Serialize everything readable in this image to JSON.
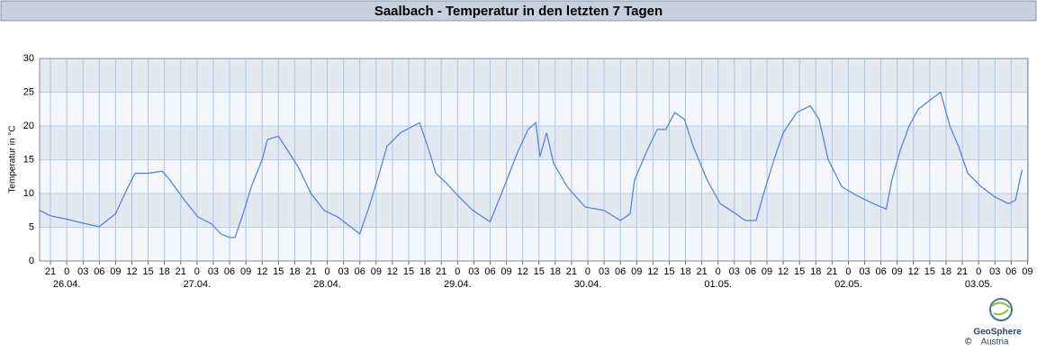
{
  "chart_data": {
    "type": "line",
    "title": "Saalbach - Temperatur in den letzten 7 Tagen",
    "y_label": "Temperatur in °C",
    "logo": {
      "name": "GeoSphere",
      "sub": "Austria",
      "copyright": "©"
    },
    "xlim": [
      -5,
      177.1
    ],
    "ylim": [
      0,
      30
    ],
    "yticks": [
      0,
      5,
      10,
      15,
      20,
      25,
      30
    ],
    "grid": true,
    "bands": true,
    "xticks": [
      {
        "value": -3,
        "label": "21"
      },
      {
        "value": 0,
        "label": "0"
      },
      {
        "value": 3,
        "label": "03"
      },
      {
        "value": 6,
        "label": "06"
      },
      {
        "value": 9,
        "label": "09"
      },
      {
        "value": 12,
        "label": "12"
      },
      {
        "value": 15,
        "label": "15"
      },
      {
        "value": 18,
        "label": "18"
      },
      {
        "value": 21,
        "label": "21"
      },
      {
        "value": 24,
        "label": "0"
      },
      {
        "value": 27,
        "label": "03"
      },
      {
        "value": 30,
        "label": "06"
      },
      {
        "value": 33,
        "label": "09"
      },
      {
        "value": 36,
        "label": "12"
      },
      {
        "value": 39,
        "label": "15"
      },
      {
        "value": 42,
        "label": "18"
      },
      {
        "value": 45,
        "label": "21"
      },
      {
        "value": 48,
        "label": "0"
      },
      {
        "value": 51,
        "label": "03"
      },
      {
        "value": 54,
        "label": "06"
      },
      {
        "value": 57,
        "label": "09"
      },
      {
        "value": 60,
        "label": "12"
      },
      {
        "value": 63,
        "label": "15"
      },
      {
        "value": 66,
        "label": "18"
      },
      {
        "value": 69,
        "label": "21"
      },
      {
        "value": 72,
        "label": "0"
      },
      {
        "value": 75,
        "label": "03"
      },
      {
        "value": 78,
        "label": "06"
      },
      {
        "value": 81,
        "label": "09"
      },
      {
        "value": 84,
        "label": "12"
      },
      {
        "value": 87,
        "label": "15"
      },
      {
        "value": 90,
        "label": "18"
      },
      {
        "value": 93,
        "label": "21"
      },
      {
        "value": 96,
        "label": "0"
      },
      {
        "value": 99,
        "label": "03"
      },
      {
        "value": 102,
        "label": "06"
      },
      {
        "value": 105,
        "label": "09"
      },
      {
        "value": 108,
        "label": "12"
      },
      {
        "value": 111,
        "label": "15"
      },
      {
        "value": 114,
        "label": "18"
      },
      {
        "value": 117,
        "label": "21"
      },
      {
        "value": 120,
        "label": "0"
      },
      {
        "value": 123,
        "label": "03"
      },
      {
        "value": 126,
        "label": "06"
      },
      {
        "value": 129,
        "label": "09"
      },
      {
        "value": 132,
        "label": "12"
      },
      {
        "value": 135,
        "label": "15"
      },
      {
        "value": 138,
        "label": "18"
      },
      {
        "value": 141,
        "label": "21"
      },
      {
        "value": 144,
        "label": "0"
      },
      {
        "value": 147,
        "label": "03"
      },
      {
        "value": 150,
        "label": "06"
      },
      {
        "value": 153,
        "label": "09"
      },
      {
        "value": 156,
        "label": "12"
      },
      {
        "value": 159,
        "label": "15"
      },
      {
        "value": 162,
        "label": "18"
      },
      {
        "value": 165,
        "label": "21"
      },
      {
        "value": 168,
        "label": "0"
      },
      {
        "value": 171,
        "label": "03"
      },
      {
        "value": 174,
        "label": "06"
      },
      {
        "value": 177,
        "label": "09"
      }
    ],
    "date_ticks": [
      {
        "value": 0,
        "label": "26.04."
      },
      {
        "value": 24,
        "label": "27.04."
      },
      {
        "value": 48,
        "label": "28.04."
      },
      {
        "value": 72,
        "label": "29.04."
      },
      {
        "value": 96,
        "label": "30.04."
      },
      {
        "value": 120,
        "label": "01.05."
      },
      {
        "value": 144,
        "label": "02.05."
      },
      {
        "value": 168,
        "label": "03.05."
      }
    ],
    "x": [
      -5,
      -3,
      0,
      3,
      6,
      9,
      11,
      12.6,
      15,
      17.6,
      19,
      21.7,
      24.2,
      26.7,
      28.4,
      30,
      31,
      32.5,
      34,
      36,
      37,
      39,
      41,
      42.6,
      45,
      47.4,
      50,
      52.4,
      54,
      55.7,
      57.4,
      59,
      61.5,
      65,
      66.5,
      68,
      70,
      72.3,
      74.8,
      78,
      80.6,
      83,
      85,
      86.4,
      87.2,
      88.4,
      89.7,
      92.2,
      95.5,
      99,
      102,
      103.8,
      104.6,
      107,
      108.8,
      110.4,
      112,
      113.8,
      115.4,
      118,
      120.4,
      122.9,
      125,
      127,
      128.4,
      130.3,
      132,
      134.5,
      137,
      138.6,
      140.3,
      142.8,
      145.3,
      148.6,
      151,
      152,
      153.6,
      155.2,
      156.9,
      159.3,
      161,
      162.7,
      164.3,
      166,
      168.5,
      171,
      173.5,
      174.8,
      176
    ],
    "series": [
      {
        "color": "#4f7fd6",
        "values": [
          7.5,
          6.7,
          6.2,
          5.6,
          5.1,
          7,
          10.5,
          13,
          13,
          13.3,
          12,
          9,
          6.5,
          5.5,
          4,
          3.5,
          3.5,
          7,
          11,
          15,
          18,
          18.5,
          16,
          14,
          10,
          7.5,
          6.5,
          5,
          4,
          8,
          12.5,
          17,
          19,
          20.5,
          17,
          13,
          11.5,
          9.5,
          7.5,
          5.8,
          11,
          16,
          19.5,
          20.5,
          15.5,
          19,
          14.5,
          11,
          8,
          7.5,
          6,
          7,
          12,
          16.5,
          19.5,
          19.5,
          22,
          21,
          17,
          12,
          8.5,
          7.2,
          6,
          6,
          10,
          15,
          19,
          22,
          23,
          21,
          15,
          11,
          9.8,
          8.5,
          7.7,
          12,
          16.5,
          20,
          22.5,
          24,
          25,
          20,
          17,
          13,
          11,
          9.5,
          8.5,
          9,
          13.5
        ]
      }
    ]
  }
}
